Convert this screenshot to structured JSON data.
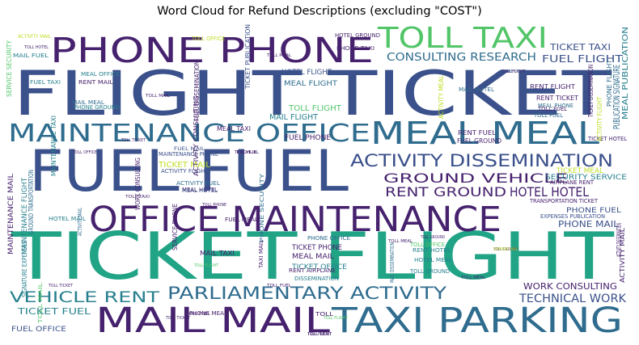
{
  "chart_data": {
    "type": "wordcloud",
    "title": "Word Cloud for Refund Descriptions (excluding \"COST\")",
    "colormap": "viridis",
    "background": "#ffffff",
    "words": [
      {
        "text": "TICKET FLIGHT",
        "color": "#21a386"
      },
      {
        "text": "FLIGHT TICKET",
        "color": "#3b518b"
      },
      {
        "text": "FUEL FUEL",
        "color": "#3b518b"
      },
      {
        "text": "PHONE PHONE",
        "color": "#46226e"
      },
      {
        "text": "OFFICE MAINTENANCE",
        "color": "#46226e"
      },
      {
        "text": "MAIL MAIL",
        "color": "#46226e"
      },
      {
        "text": "TAXI PARKING",
        "color": "#2f6c8e"
      },
      {
        "text": "MAINTENANCE OFFICE",
        "color": "#2f6c8e"
      },
      {
        "text": "MEAL MEAL",
        "color": "#2f6c8e"
      },
      {
        "text": "TOLL TAXI",
        "color": "#52c569"
      },
      {
        "text": "ACTIVITY DISSEMINATION",
        "color": "#3b518b"
      },
      {
        "text": "PARLIAMENTARY ACTIVITY",
        "color": "#2f6c8e"
      },
      {
        "text": "GROUND VEHICLE",
        "color": "#46226e"
      },
      {
        "text": "RENT GROUND",
        "color": "#46226e"
      },
      {
        "text": "HOTEL HOTEL",
        "color": "#46226e"
      },
      {
        "text": "VEHICLE RENT",
        "color": "#27808e"
      },
      {
        "text": "CONSULTING RESEARCH",
        "color": "#2f6c8e"
      },
      {
        "text": "FUEL FLIGHT",
        "color": "#3b518b"
      },
      {
        "text": "TECHNICAL WORK",
        "color": "#3b518b"
      },
      {
        "text": "TICKET TAXI",
        "color": "#3b518b"
      },
      {
        "text": "WORK CONSULTING",
        "color": "#46226e"
      },
      {
        "text": "SECURITY SERVICE",
        "color": "#27808e"
      },
      {
        "text": "TICKET FUEL",
        "color": "#27808e"
      },
      {
        "text": "PHONE FUEL",
        "color": "#3b518b"
      },
      {
        "text": "PHONE MAIL",
        "color": "#3b518b"
      },
      {
        "text": "TOLL FLIGHT",
        "color": "#52c569"
      },
      {
        "text": "MAIL FLIGHT",
        "color": "#27808e"
      },
      {
        "text": "FUEL PHONE",
        "color": "#46226e"
      },
      {
        "text": "FUEL OFFICE",
        "color": "#3b518b"
      },
      {
        "text": "MEAL FLIGHT",
        "color": "#2f6c8e"
      },
      {
        "text": "TICKET MAIL",
        "color": "#bddf26"
      },
      {
        "text": "TICKET PHONE",
        "color": "#46226e"
      },
      {
        "text": "TICKET OFFICE",
        "color": "#27808e"
      },
      {
        "text": "MEAL MAIL",
        "color": "#46226e"
      },
      {
        "text": "HOTEL FLIGHT",
        "color": "#3b518b"
      },
      {
        "text": "RENT FUEL",
        "color": "#46226e"
      },
      {
        "text": "FUEL GROUND",
        "color": "#46226e"
      },
      {
        "text": "TICKET HOTEL",
        "color": "#46226e"
      },
      {
        "text": "TICKET MEAL",
        "color": "#bddf26"
      },
      {
        "text": "TOLL OFFICE",
        "color": "#bddf26"
      },
      {
        "text": "MEAL PHONE",
        "color": "#2f6c8e"
      },
      {
        "text": "RENT TICKET",
        "color": "#46226e"
      },
      {
        "text": "TOLL FUEL",
        "color": "#46226e"
      },
      {
        "text": "TOLL FUEL",
        "color": "#46226e"
      },
      {
        "text": "RENT FLIGHT",
        "color": "#46226e"
      },
      {
        "text": "TOLL FLIGHT",
        "color": "#52c569"
      },
      {
        "text": "TOLL FUEL",
        "color": "#46226e"
      },
      {
        "text": "TOLL FLIGHT",
        "color": "#52c569"
      },
      {
        "text": "TOLL GROUND",
        "color": "#46226e"
      },
      {
        "text": "TOLL MEAL",
        "color": "#46226e"
      },
      {
        "text": "TOLL HOTEL",
        "color": "#46226e"
      },
      {
        "text": "TOLL TICKET",
        "color": "#46226e"
      },
      {
        "text": "TOLL TICKET",
        "color": "#46226e"
      },
      {
        "text": "TOLL MEAL",
        "color": "#46226e"
      },
      {
        "text": "TOLL RENT",
        "color": "#46226e"
      },
      {
        "text": "TOLL",
        "color": "#46226e"
      },
      {
        "text": "TOLL TICKET",
        "color": "#46226e"
      },
      {
        "text": "TOLL TAXI",
        "color": "#46226e"
      },
      {
        "text": "TOLL FLIGHT",
        "color": "#46226e"
      },
      {
        "text": "TOLL FUEL",
        "color": "#46226e"
      },
      {
        "text": "TOLL OFFICE",
        "color": "#46226e"
      },
      {
        "text": "TOLL MAIL",
        "color": "#46226e"
      },
      {
        "text": "TOLL PHONE",
        "color": "#46226e"
      },
      {
        "text": "TOLL GROUND",
        "color": "#46226e"
      },
      {
        "text": "TOLL MEAL",
        "color": "#46226e"
      },
      {
        "text": "MEAL TAXI",
        "color": "#46226e"
      },
      {
        "text": "MAIL TAXI",
        "color": "#46226e"
      },
      {
        "text": "MAIL FUEL",
        "color": "#27808e"
      },
      {
        "text": "MEAL OFFICE",
        "color": "#27808e"
      },
      {
        "text": "RENT MAIL",
        "color": "#46226e"
      },
      {
        "text": "FUEL TAXI",
        "color": "#27808e"
      },
      {
        "text": "PHONE GROUND",
        "color": "#27808e"
      },
      {
        "text": "HOTEL GROUND",
        "color": "#46226e"
      },
      {
        "text": "PHONE TAXI",
        "color": "#46226e"
      },
      {
        "text": "ACTIVITY MAIL",
        "color": "#bddf26"
      },
      {
        "text": "PHONE OFFICE",
        "color": "#2f6c8e"
      },
      {
        "text": "HOTEL MAIL",
        "color": "#27808e"
      },
      {
        "text": "MAIL MEAL",
        "color": "#2f6c8e"
      },
      {
        "text": "MEAL HOTEL",
        "color": "#46226e"
      },
      {
        "text": "MAIL HOTEL",
        "color": "#2f6c8e"
      },
      {
        "text": "HOTEL MEAL",
        "color": "#27808e"
      },
      {
        "text": "RENT HOTEL",
        "color": "#27808e"
      },
      {
        "text": "TOLL GROUND",
        "color": "#27808e"
      },
      {
        "text": "TOLL OFFICE",
        "color": "#52c569"
      },
      {
        "text": "RENT AIRPLANE",
        "color": "#46226e"
      },
      {
        "text": "DISSEMINATION",
        "color": "#27808e"
      },
      {
        "text": "PHONE MEAL",
        "color": "#46226e"
      },
      {
        "text": "TOLL",
        "color": "#46226e"
      },
      {
        "text": "FUEL MEAL",
        "color": "#46226e"
      },
      {
        "text": "FUEL MAIL",
        "color": "#3b518b"
      },
      {
        "text": "MAINTENANCE PHONE",
        "color": "#3b518b"
      },
      {
        "text": "ACTIVITY FLIGHT",
        "color": "#3b518b"
      },
      {
        "text": "ACTIVITY FUEL",
        "color": "#2f6c8e"
      },
      {
        "text": "MEAL HOTEL",
        "color": "#3b518b"
      },
      {
        "text": "TRANSPORTATION TICKET",
        "color": "#46226e"
      },
      {
        "text": "EXPENSES PUBLICATION",
        "color": "#3b518b"
      },
      {
        "text": "AIRPLANE RENT",
        "color": "#46226e"
      },
      {
        "text": "TOLL FUEL",
        "color": "#2f6c8e"
      },
      {
        "text": "TOLL FLIGHT",
        "color": "#46226e"
      },
      {
        "text": "FUEL DISSEMINATION",
        "color": "#46226e"
      },
      {
        "text": "ACTIVITY CONSULTING",
        "color": "#46226e"
      },
      {
        "text": "TICKET DISSEMINATION",
        "color": "#46226e"
      },
      {
        "text": "MEAL PUBLICATION",
        "color": "#27808e"
      },
      {
        "text": "PUBLICATION SIGNATURE",
        "color": "#2f6c8e"
      },
      {
        "text": "PHONE FLIGHT",
        "color": "#2f6c8e"
      },
      {
        "text": "ACTIVITY FLIGHT",
        "color": "#bddf26"
      },
      {
        "text": "ACTIVITY MEAL",
        "color": "#bddf26"
      },
      {
        "text": "EXPENSES MAIL",
        "color": "#bddf26"
      },
      {
        "text": "SERVICE SECURITY",
        "color": "#52c569"
      },
      {
        "text": "MAINTENANCE TAXI",
        "color": "#27808e"
      },
      {
        "text": "MAINTENANCE MAIL",
        "color": "#46226e"
      },
      {
        "text": "MAINTENANCE FLIGHT",
        "color": "#27808e"
      },
      {
        "text": "GROUND TRANSPORTATION",
        "color": "#2f6c8e"
      },
      {
        "text": "SIGNATURE EXPENSES",
        "color": "#27808e"
      },
      {
        "text": "WORK CONSULTING",
        "color": "#46226e"
      },
      {
        "text": "SERVICE PHONE",
        "color": "#46226e"
      },
      {
        "text": "PHONE SECURITY",
        "color": "#2f6c8e"
      },
      {
        "text": "MAIL DISSEMINATION",
        "color": "#2f6c8e"
      },
      {
        "text": "ACTIVITY MAIL",
        "color": "#2f6c8e"
      },
      {
        "text": "TAXI MAIL",
        "color": "#46226e"
      },
      {
        "text": "TOLL MAIL",
        "color": "#52c569"
      },
      {
        "text": "ACTIVITY MAIL",
        "color": "#46226e"
      },
      {
        "text": "TICKET PUBLICATION",
        "color": "#3b518b"
      },
      {
        "text": "ACTIVITY DISSEMINATION",
        "color": "#46226e"
      },
      {
        "text": "PHONE OFFICE",
        "color": "#3b518b"
      }
    ]
  }
}
